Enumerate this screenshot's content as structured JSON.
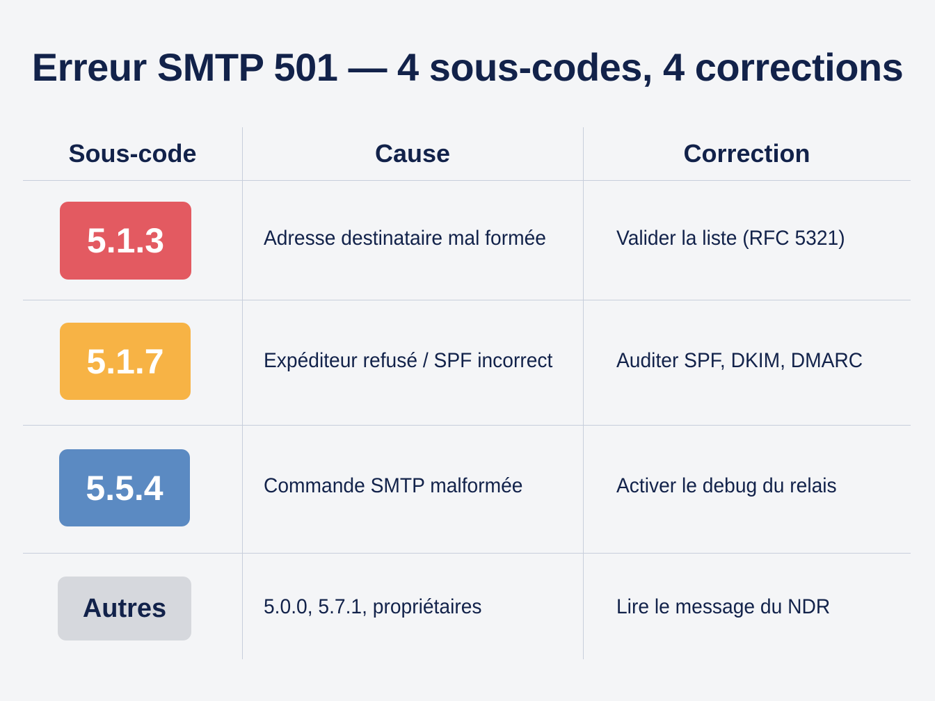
{
  "title": "Erreur SMTP 501 — 4 sous-codes, 4 corrections",
  "table": {
    "headers": {
      "subcode": "Sous-code",
      "cause": "Cause",
      "correction": "Correction"
    },
    "rows": [
      {
        "code": "5.1.3",
        "badge_color": "#e35a61",
        "badge_text_color": "#ffffff",
        "cause": "Adresse destinataire mal formée",
        "correction": "Valider la liste (RFC 5321)"
      },
      {
        "code": "5.1.7",
        "badge_color": "#f7b345",
        "badge_text_color": "#ffffff",
        "cause": "Expéditeur refusé / SPF incorrect",
        "correction": "Auditer SPF, DKIM, DMARC"
      },
      {
        "code": "5.5.4",
        "badge_color": "#5b8ac2",
        "badge_text_color": "#ffffff",
        "cause": "Commande SMTP malformée",
        "correction": "Activer le debug du relais"
      },
      {
        "code": "Autres",
        "badge_color": "#d6d8dd",
        "badge_text_color": "#12224a",
        "cause": "5.0.0, 5.7.1, propriétaires",
        "correction": "Lire le message du NDR"
      }
    ]
  },
  "colors": {
    "background": "#f4f5f7",
    "text": "#12224a",
    "grid_lines": "#c7cedb"
  }
}
